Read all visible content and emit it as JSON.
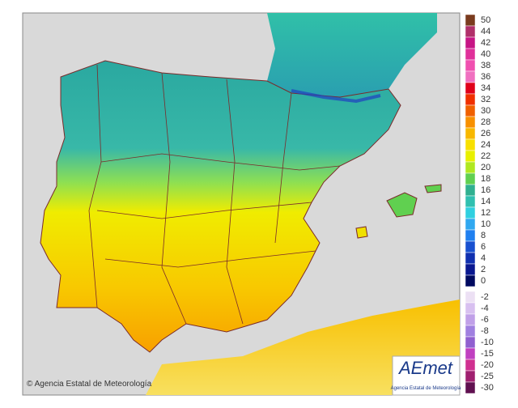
{
  "copyright": "© Agencia Estatal de Meteorología",
  "logo": {
    "text": "AEmet",
    "subtitle": "Agencia Estatal de Meteorología"
  },
  "legend": [
    {
      "value": 50,
      "color": "#7a3b1e"
    },
    {
      "value": 44,
      "color": "#b0306a"
    },
    {
      "value": 42,
      "color": "#c71585"
    },
    {
      "value": 40,
      "color": "#e0309a"
    },
    {
      "value": 38,
      "color": "#f050b0"
    },
    {
      "value": 36,
      "color": "#f070c0"
    },
    {
      "value": 34,
      "color": "#e0001a"
    },
    {
      "value": 32,
      "color": "#f03000"
    },
    {
      "value": 30,
      "color": "#f06000"
    },
    {
      "value": 28,
      "color": "#f89000"
    },
    {
      "value": 26,
      "color": "#f8b800"
    },
    {
      "value": 24,
      "color": "#f8e000"
    },
    {
      "value": 22,
      "color": "#e8f000"
    },
    {
      "value": 20,
      "color": "#b0e820"
    },
    {
      "value": 18,
      "color": "#60d050"
    },
    {
      "value": 16,
      "color": "#30b090"
    },
    {
      "value": 14,
      "color": "#30c0b0"
    },
    {
      "value": 12,
      "color": "#30d0e0"
    },
    {
      "value": 10,
      "color": "#30a8f0"
    },
    {
      "value": 8,
      "color": "#2080f0"
    },
    {
      "value": 6,
      "color": "#1850d0"
    },
    {
      "value": 4,
      "color": "#1030b0"
    },
    {
      "value": 2,
      "color": "#0a1890"
    },
    {
      "value": 0,
      "color": "#000a60"
    },
    {
      "value": -2,
      "color": "#ece0f4"
    },
    {
      "value": -4,
      "color": "#d8c0f0"
    },
    {
      "value": -6,
      "color": "#c0a0e8"
    },
    {
      "value": -8,
      "color": "#a080e0"
    },
    {
      "value": -10,
      "color": "#9060d0"
    },
    {
      "value": -15,
      "color": "#c040c0"
    },
    {
      "value": -20,
      "color": "#d03090"
    },
    {
      "value": -25,
      "color": "#a02070"
    },
    {
      "value": -30,
      "color": "#601050"
    }
  ]
}
